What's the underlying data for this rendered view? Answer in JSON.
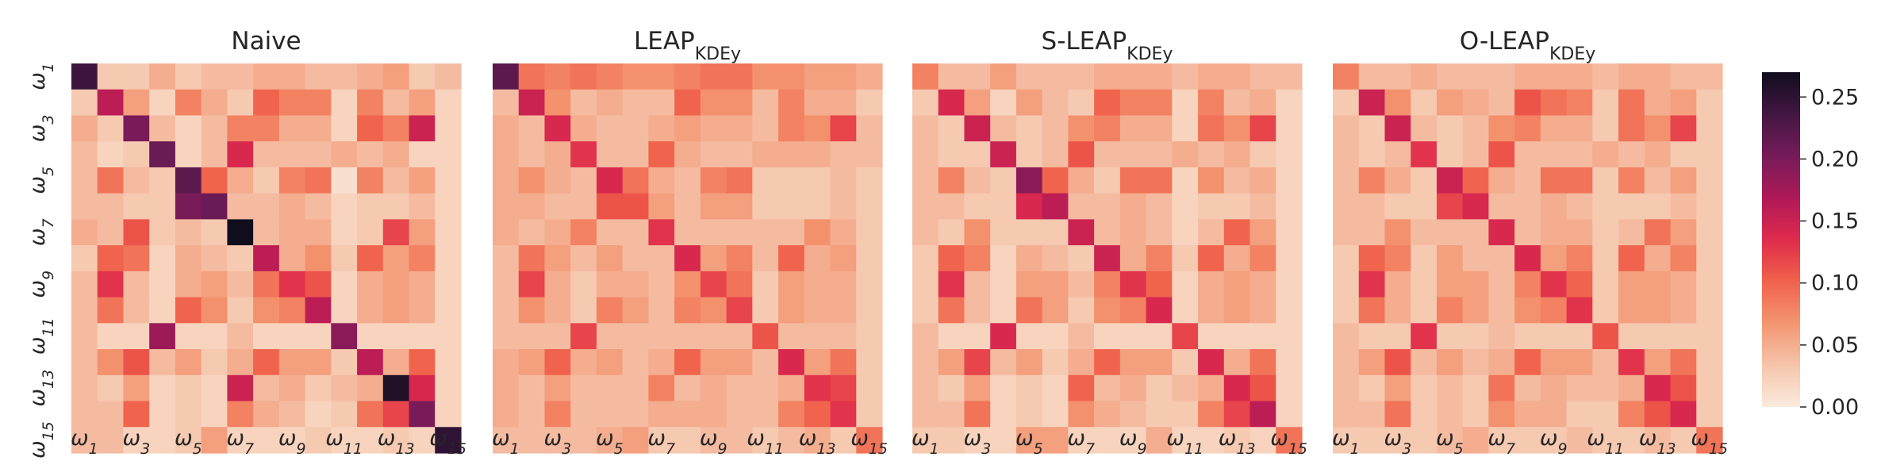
{
  "chart_data": {
    "type": "heatmap",
    "colormap": "rocket_r",
    "grid": false,
    "tick_labels": [
      "ω1",
      "ω3",
      "ω5",
      "ω7",
      "ω9",
      "ω11",
      "ω13",
      "ω15"
    ],
    "tick_subscripts": [
      "1",
      "3",
      "5",
      "7",
      "9",
      "11",
      "13",
      "15"
    ],
    "tick_base": "ω",
    "colorbar": {
      "ticks": [
        "0.00",
        "0.05",
        "0.10",
        "0.15",
        "0.20",
        "0.25"
      ],
      "tick_values": [
        0.0,
        0.05,
        0.1,
        0.15,
        0.2,
        0.25
      ],
      "range": [
        0.0,
        0.27
      ],
      "position": "right"
    },
    "panels": [
      {
        "title_main": "Naive",
        "title_sub": "",
        "matrix": [
          [
            0.24,
            0.03,
            0.03,
            0.05,
            0.03,
            0.04,
            0.04,
            0.05,
            0.05,
            0.04,
            0.04,
            0.05,
            0.06,
            0.03,
            0.04
          ],
          [
            0.03,
            0.16,
            0.06,
            0.02,
            0.08,
            0.05,
            0.03,
            0.1,
            0.08,
            0.08,
            0.02,
            0.08,
            0.04,
            0.06,
            0.02
          ],
          [
            0.05,
            0.03,
            0.2,
            0.04,
            0.02,
            0.04,
            0.08,
            0.08,
            0.05,
            0.05,
            0.02,
            0.1,
            0.08,
            0.15,
            0.02
          ],
          [
            0.04,
            0.02,
            0.03,
            0.21,
            0.02,
            0.04,
            0.14,
            0.04,
            0.04,
            0.04,
            0.05,
            0.04,
            0.05,
            0.02,
            0.02
          ],
          [
            0.04,
            0.09,
            0.04,
            0.03,
            0.22,
            0.1,
            0.05,
            0.03,
            0.08,
            0.09,
            0.01,
            0.08,
            0.04,
            0.06,
            0.02
          ],
          [
            0.04,
            0.04,
            0.03,
            0.03,
            0.2,
            0.21,
            0.04,
            0.04,
            0.05,
            0.04,
            0.02,
            0.03,
            0.03,
            0.04,
            0.02
          ],
          [
            0.05,
            0.04,
            0.11,
            0.03,
            0.04,
            0.03,
            0.27,
            0.04,
            0.05,
            0.05,
            0.02,
            0.03,
            0.12,
            0.06,
            0.02
          ],
          [
            0.03,
            0.1,
            0.09,
            0.02,
            0.05,
            0.04,
            0.03,
            0.16,
            0.05,
            0.07,
            0.03,
            0.1,
            0.06,
            0.08,
            0.02
          ],
          [
            0.04,
            0.13,
            0.04,
            0.02,
            0.05,
            0.06,
            0.04,
            0.09,
            0.13,
            0.11,
            0.02,
            0.05,
            0.06,
            0.05,
            0.02
          ],
          [
            0.04,
            0.09,
            0.04,
            0.02,
            0.1,
            0.07,
            0.03,
            0.07,
            0.08,
            0.16,
            0.02,
            0.05,
            0.06,
            0.05,
            0.02
          ],
          [
            0.04,
            0.02,
            0.02,
            0.18,
            0.02,
            0.02,
            0.04,
            0.02,
            0.02,
            0.02,
            0.19,
            0.02,
            0.02,
            0.02,
            0.02
          ],
          [
            0.04,
            0.07,
            0.11,
            0.04,
            0.06,
            0.03,
            0.05,
            0.1,
            0.06,
            0.06,
            0.03,
            0.16,
            0.05,
            0.1,
            0.02
          ],
          [
            0.04,
            0.03,
            0.06,
            0.02,
            0.03,
            0.02,
            0.15,
            0.04,
            0.05,
            0.03,
            0.04,
            0.05,
            0.26,
            0.14,
            0.02
          ],
          [
            0.04,
            0.04,
            0.1,
            0.02,
            0.03,
            0.02,
            0.08,
            0.05,
            0.04,
            0.02,
            0.03,
            0.09,
            0.12,
            0.2,
            0.02
          ],
          [
            0.04,
            0.04,
            0.02,
            0.02,
            0.03,
            0.06,
            0.02,
            0.02,
            0.02,
            0.03,
            0.02,
            0.02,
            0.03,
            0.02,
            0.25
          ]
        ]
      },
      {
        "title_main": "LEAP",
        "title_sub": "KDEy",
        "matrix": [
          [
            0.22,
            0.09,
            0.08,
            0.09,
            0.08,
            0.07,
            0.07,
            0.08,
            0.09,
            0.09,
            0.07,
            0.07,
            0.06,
            0.06,
            0.05
          ],
          [
            0.04,
            0.15,
            0.07,
            0.04,
            0.05,
            0.04,
            0.04,
            0.1,
            0.07,
            0.07,
            0.04,
            0.08,
            0.05,
            0.05,
            0.03
          ],
          [
            0.05,
            0.04,
            0.14,
            0.05,
            0.04,
            0.04,
            0.05,
            0.06,
            0.05,
            0.05,
            0.04,
            0.08,
            0.07,
            0.12,
            0.04
          ],
          [
            0.05,
            0.04,
            0.05,
            0.13,
            0.04,
            0.04,
            0.1,
            0.05,
            0.04,
            0.04,
            0.05,
            0.05,
            0.05,
            0.04,
            0.04
          ],
          [
            0.05,
            0.07,
            0.05,
            0.04,
            0.14,
            0.09,
            0.05,
            0.04,
            0.08,
            0.09,
            0.03,
            0.03,
            0.03,
            0.04,
            0.03
          ],
          [
            0.05,
            0.05,
            0.04,
            0.04,
            0.11,
            0.11,
            0.06,
            0.04,
            0.06,
            0.06,
            0.03,
            0.03,
            0.03,
            0.04,
            0.03
          ],
          [
            0.05,
            0.04,
            0.05,
            0.08,
            0.04,
            0.04,
            0.13,
            0.04,
            0.04,
            0.04,
            0.04,
            0.04,
            0.07,
            0.05,
            0.03
          ],
          [
            0.04,
            0.09,
            0.06,
            0.04,
            0.06,
            0.04,
            0.04,
            0.14,
            0.06,
            0.08,
            0.04,
            0.1,
            0.05,
            0.06,
            0.03
          ],
          [
            0.04,
            0.12,
            0.05,
            0.03,
            0.05,
            0.05,
            0.04,
            0.07,
            0.12,
            0.09,
            0.03,
            0.06,
            0.05,
            0.05,
            0.03
          ],
          [
            0.04,
            0.07,
            0.05,
            0.03,
            0.08,
            0.06,
            0.04,
            0.08,
            0.07,
            0.12,
            0.03,
            0.06,
            0.05,
            0.05,
            0.03
          ],
          [
            0.04,
            0.04,
            0.04,
            0.12,
            0.04,
            0.04,
            0.04,
            0.04,
            0.04,
            0.04,
            0.11,
            0.04,
            0.04,
            0.04,
            0.03
          ],
          [
            0.05,
            0.06,
            0.1,
            0.05,
            0.06,
            0.04,
            0.05,
            0.1,
            0.06,
            0.06,
            0.04,
            0.14,
            0.06,
            0.09,
            0.03
          ],
          [
            0.05,
            0.04,
            0.06,
            0.04,
            0.04,
            0.04,
            0.08,
            0.04,
            0.05,
            0.04,
            0.04,
            0.05,
            0.13,
            0.12,
            0.03
          ],
          [
            0.05,
            0.04,
            0.08,
            0.04,
            0.04,
            0.04,
            0.05,
            0.05,
            0.05,
            0.04,
            0.04,
            0.08,
            0.1,
            0.13,
            0.03
          ],
          [
            0.04,
            0.04,
            0.04,
            0.04,
            0.05,
            0.06,
            0.03,
            0.03,
            0.04,
            0.04,
            0.03,
            0.04,
            0.05,
            0.03,
            0.09
          ]
        ]
      },
      {
        "title_main": "S-LEAP",
        "title_sub": "KDEy",
        "matrix": [
          [
            0.08,
            0.04,
            0.04,
            0.06,
            0.04,
            0.04,
            0.04,
            0.05,
            0.05,
            0.05,
            0.04,
            0.05,
            0.05,
            0.04,
            0.04
          ],
          [
            0.03,
            0.14,
            0.06,
            0.02,
            0.06,
            0.04,
            0.03,
            0.1,
            0.08,
            0.08,
            0.02,
            0.08,
            0.04,
            0.05,
            0.02
          ],
          [
            0.04,
            0.03,
            0.15,
            0.04,
            0.03,
            0.04,
            0.07,
            0.08,
            0.05,
            0.05,
            0.02,
            0.09,
            0.07,
            0.12,
            0.02
          ],
          [
            0.04,
            0.03,
            0.03,
            0.15,
            0.03,
            0.04,
            0.11,
            0.04,
            0.04,
            0.04,
            0.05,
            0.04,
            0.05,
            0.03,
            0.02
          ],
          [
            0.04,
            0.08,
            0.04,
            0.03,
            0.19,
            0.1,
            0.05,
            0.03,
            0.09,
            0.09,
            0.02,
            0.07,
            0.04,
            0.05,
            0.02
          ],
          [
            0.04,
            0.04,
            0.03,
            0.03,
            0.14,
            0.16,
            0.04,
            0.04,
            0.05,
            0.04,
            0.02,
            0.03,
            0.03,
            0.04,
            0.02
          ],
          [
            0.04,
            0.03,
            0.07,
            0.03,
            0.03,
            0.03,
            0.15,
            0.04,
            0.05,
            0.04,
            0.02,
            0.04,
            0.1,
            0.06,
            0.02
          ],
          [
            0.03,
            0.1,
            0.08,
            0.02,
            0.05,
            0.04,
            0.03,
            0.15,
            0.05,
            0.08,
            0.03,
            0.1,
            0.05,
            0.08,
            0.02
          ],
          [
            0.03,
            0.13,
            0.04,
            0.02,
            0.06,
            0.06,
            0.04,
            0.08,
            0.13,
            0.1,
            0.02,
            0.05,
            0.06,
            0.05,
            0.02
          ],
          [
            0.03,
            0.09,
            0.04,
            0.02,
            0.09,
            0.06,
            0.03,
            0.07,
            0.08,
            0.14,
            0.02,
            0.05,
            0.06,
            0.05,
            0.02
          ],
          [
            0.04,
            0.02,
            0.02,
            0.14,
            0.02,
            0.02,
            0.04,
            0.02,
            0.02,
            0.02,
            0.12,
            0.02,
            0.02,
            0.02,
            0.02
          ],
          [
            0.04,
            0.06,
            0.12,
            0.04,
            0.06,
            0.03,
            0.05,
            0.1,
            0.06,
            0.06,
            0.03,
            0.14,
            0.05,
            0.09,
            0.02
          ],
          [
            0.04,
            0.03,
            0.06,
            0.02,
            0.03,
            0.02,
            0.1,
            0.04,
            0.05,
            0.03,
            0.04,
            0.05,
            0.14,
            0.11,
            0.02
          ],
          [
            0.04,
            0.04,
            0.09,
            0.02,
            0.03,
            0.02,
            0.07,
            0.05,
            0.04,
            0.03,
            0.03,
            0.08,
            0.12,
            0.16,
            0.02
          ],
          [
            0.03,
            0.03,
            0.02,
            0.02,
            0.06,
            0.06,
            0.02,
            0.02,
            0.02,
            0.05,
            0.02,
            0.02,
            0.03,
            0.02,
            0.09
          ]
        ]
      },
      {
        "title_main": "O-LEAP",
        "title_sub": "KDEy",
        "matrix": [
          [
            0.08,
            0.04,
            0.04,
            0.05,
            0.04,
            0.04,
            0.04,
            0.05,
            0.05,
            0.05,
            0.04,
            0.05,
            0.05,
            0.04,
            0.04
          ],
          [
            0.03,
            0.15,
            0.07,
            0.03,
            0.06,
            0.05,
            0.04,
            0.11,
            0.09,
            0.08,
            0.03,
            0.09,
            0.05,
            0.06,
            0.03
          ],
          [
            0.04,
            0.03,
            0.15,
            0.04,
            0.03,
            0.04,
            0.07,
            0.08,
            0.05,
            0.05,
            0.03,
            0.09,
            0.07,
            0.12,
            0.03
          ],
          [
            0.04,
            0.03,
            0.04,
            0.13,
            0.03,
            0.04,
            0.11,
            0.04,
            0.04,
            0.04,
            0.05,
            0.04,
            0.05,
            0.03,
            0.03
          ],
          [
            0.04,
            0.08,
            0.05,
            0.03,
            0.15,
            0.1,
            0.05,
            0.04,
            0.09,
            0.09,
            0.03,
            0.08,
            0.04,
            0.06,
            0.03
          ],
          [
            0.04,
            0.04,
            0.03,
            0.03,
            0.12,
            0.14,
            0.04,
            0.04,
            0.05,
            0.04,
            0.03,
            0.03,
            0.03,
            0.04,
            0.03
          ],
          [
            0.04,
            0.04,
            0.07,
            0.04,
            0.04,
            0.04,
            0.14,
            0.04,
            0.05,
            0.05,
            0.03,
            0.04,
            0.09,
            0.06,
            0.03
          ],
          [
            0.03,
            0.1,
            0.08,
            0.03,
            0.06,
            0.04,
            0.04,
            0.14,
            0.06,
            0.08,
            0.03,
            0.1,
            0.05,
            0.08,
            0.03
          ],
          [
            0.03,
            0.13,
            0.05,
            0.03,
            0.06,
            0.06,
            0.04,
            0.08,
            0.13,
            0.1,
            0.03,
            0.06,
            0.06,
            0.05,
            0.03
          ],
          [
            0.03,
            0.09,
            0.05,
            0.03,
            0.08,
            0.06,
            0.04,
            0.07,
            0.08,
            0.13,
            0.03,
            0.06,
            0.06,
            0.05,
            0.03
          ],
          [
            0.04,
            0.03,
            0.03,
            0.13,
            0.03,
            0.03,
            0.04,
            0.03,
            0.03,
            0.03,
            0.11,
            0.03,
            0.03,
            0.03,
            0.03
          ],
          [
            0.04,
            0.06,
            0.11,
            0.04,
            0.06,
            0.04,
            0.05,
            0.1,
            0.06,
            0.06,
            0.04,
            0.13,
            0.06,
            0.09,
            0.03
          ],
          [
            0.04,
            0.03,
            0.06,
            0.03,
            0.04,
            0.03,
            0.09,
            0.04,
            0.05,
            0.04,
            0.04,
            0.05,
            0.14,
            0.11,
            0.03
          ],
          [
            0.04,
            0.04,
            0.09,
            0.03,
            0.04,
            0.03,
            0.07,
            0.05,
            0.05,
            0.03,
            0.03,
            0.08,
            0.11,
            0.14,
            0.03
          ],
          [
            0.03,
            0.03,
            0.03,
            0.03,
            0.04,
            0.05,
            0.03,
            0.03,
            0.03,
            0.04,
            0.03,
            0.03,
            0.04,
            0.03,
            0.09
          ]
        ]
      }
    ]
  }
}
